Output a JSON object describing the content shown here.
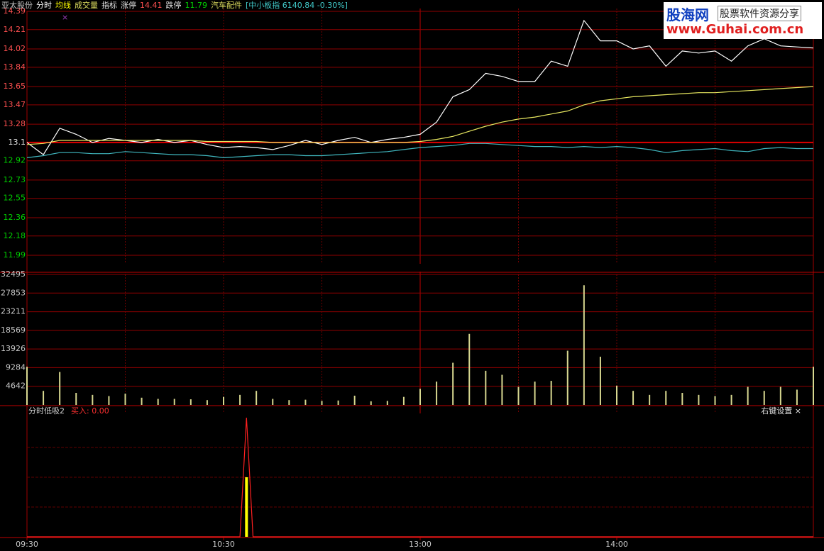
{
  "header": {
    "items": [
      {
        "text": "亚太股份",
        "color": "#c8c8c8"
      },
      {
        "text": "分时",
        "color": "#ffffff"
      },
      {
        "text": "均线",
        "color": "#ffff00"
      },
      {
        "text": "成交量",
        "color": "#e0e060"
      },
      {
        "text": "指标",
        "color": "#e0e0e0"
      },
      {
        "text": "涨停",
        "color": "#e0e0e0"
      },
      {
        "text": "14.41",
        "color": "#ff5050"
      },
      {
        "text": "跌停",
        "color": "#e0e0e0"
      },
      {
        "text": "11.79",
        "color": "#00d000"
      },
      {
        "text": "汽车配件",
        "color": "#e0e060"
      },
      {
        "text": "[中小板指 6140.84 -0.30%]",
        "color": "#40c8c8"
      }
    ]
  },
  "watermark": {
    "brand": "股海网",
    "slogan": "股票软件资源分享",
    "url": "www.Guhai.com.cn"
  },
  "chart_data": [
    {
      "type": "line",
      "xlim": [
        0,
        240
      ],
      "xgrid": [
        30,
        60,
        90,
        120,
        150,
        180,
        210
      ],
      "ylim": [
        11.99,
        14.39
      ],
      "yticks": [
        14.39,
        14.21,
        14.02,
        13.84,
        13.65,
        13.47,
        13.28,
        13.1,
        12.92,
        12.73,
        12.55,
        12.36,
        12.18,
        11.99
      ],
      "reference_line": 13.1,
      "grid": true,
      "x": [
        0,
        5,
        10,
        15,
        20,
        25,
        30,
        35,
        40,
        45,
        50,
        55,
        60,
        65,
        70,
        75,
        80,
        85,
        90,
        95,
        100,
        105,
        110,
        115,
        120,
        125,
        130,
        135,
        140,
        145,
        150,
        155,
        160,
        165,
        170,
        175,
        180,
        185,
        190,
        195,
        200,
        205,
        210,
        215,
        220,
        225,
        230,
        235,
        240
      ],
      "series": [
        {
          "color": "#ffffff",
          "values": [
            13.1,
            12.98,
            13.24,
            13.18,
            13.1,
            13.14,
            13.12,
            13.1,
            13.13,
            13.1,
            13.12,
            13.08,
            13.05,
            13.06,
            13.05,
            13.03,
            13.07,
            13.12,
            13.08,
            13.12,
            13.15,
            13.1,
            13.13,
            13.15,
            13.18,
            13.3,
            13.55,
            13.62,
            13.78,
            13.75,
            13.7,
            13.7,
            13.9,
            13.85,
            14.3,
            14.1,
            14.1,
            14.02,
            14.05,
            13.85,
            14.0,
            13.98,
            14.0,
            13.9,
            14.05,
            14.12,
            14.05,
            14.04,
            14.03
          ]
        },
        {
          "color": "#e8e860",
          "values": [
            13.08,
            13.09,
            13.12,
            13.12,
            13.12,
            13.12,
            13.12,
            13.12,
            13.12,
            13.12,
            13.12,
            13.11,
            13.11,
            13.11,
            13.11,
            13.1,
            13.1,
            13.1,
            13.1,
            13.1,
            13.1,
            13.1,
            13.1,
            13.1,
            13.11,
            13.13,
            13.16,
            13.21,
            13.26,
            13.3,
            13.33,
            13.35,
            13.38,
            13.41,
            13.47,
            13.51,
            13.53,
            13.55,
            13.56,
            13.57,
            13.58,
            13.59,
            13.59,
            13.6,
            13.61,
            13.62,
            13.63,
            13.64,
            13.65
          ]
        },
        {
          "color": "#40b8c0",
          "values": [
            12.95,
            12.97,
            13.0,
            13.0,
            12.99,
            12.99,
            13.01,
            13.0,
            12.99,
            12.98,
            12.98,
            12.97,
            12.95,
            12.96,
            12.97,
            12.98,
            12.98,
            12.97,
            12.97,
            12.98,
            12.99,
            13.0,
            13.01,
            13.03,
            13.05,
            13.06,
            13.07,
            13.09,
            13.09,
            13.08,
            13.07,
            13.06,
            13.06,
            13.05,
            13.06,
            13.05,
            13.06,
            13.05,
            13.03,
            13.0,
            13.02,
            13.03,
            13.04,
            13.02,
            13.01,
            13.04,
            13.05,
            13.04,
            13.04
          ]
        }
      ]
    },
    {
      "type": "bar",
      "xlim": [
        0,
        240
      ],
      "xgrid": [
        30,
        60,
        90,
        120,
        150,
        180,
        210
      ],
      "ylim": [
        0,
        32495
      ],
      "yticks": [
        32495,
        27853,
        23211,
        18569,
        13926,
        9284,
        4642
      ],
      "grid": true,
      "color": "#d8d890",
      "x": [
        0,
        5,
        10,
        15,
        20,
        25,
        30,
        35,
        40,
        45,
        50,
        55,
        60,
        65,
        70,
        75,
        80,
        85,
        90,
        95,
        100,
        105,
        110,
        115,
        120,
        125,
        130,
        135,
        140,
        145,
        150,
        155,
        160,
        165,
        170,
        175,
        180,
        185,
        190,
        195,
        200,
        205,
        210,
        215,
        220,
        225,
        230,
        235,
        240
      ],
      "values": [
        9500,
        3500,
        8200,
        3000,
        2500,
        2200,
        2800,
        1800,
        1500,
        1500,
        1400,
        1200,
        2000,
        2500,
        3500,
        1500,
        1200,
        1300,
        1000,
        1100,
        2300,
        900,
        1000,
        2000,
        4000,
        5800,
        10500,
        17700,
        8500,
        7500,
        4500,
        5800,
        6000,
        13500,
        29800,
        12000,
        4800,
        3500,
        2500,
        3500,
        3000,
        2500,
        2200,
        2500,
        4500,
        3500,
        4500,
        3800,
        9500
      ]
    },
    {
      "type": "line",
      "title": "分时低吸2",
      "annotation": "买入: 0.00",
      "settings_label": "右键设置 ×",
      "xlim": [
        0,
        240
      ],
      "xticks": [
        {
          "value": 0,
          "label": "09:30"
        },
        {
          "value": 60,
          "label": "10:30"
        },
        {
          "value": 120,
          "label": "13:00"
        },
        {
          "value": 180,
          "label": "14:00"
        }
      ],
      "ylim": [
        0,
        1
      ],
      "yticks": [
        0.25,
        0.5,
        0.75
      ],
      "grid": true,
      "x": [
        0,
        65,
        67,
        69,
        240
      ],
      "series": [
        {
          "color": "#ff2020",
          "values": [
            0,
            0,
            1,
            0,
            0
          ]
        }
      ],
      "bars": {
        "color": "#ffff00",
        "x": [
          67
        ],
        "values": [
          0.5
        ]
      }
    }
  ]
}
